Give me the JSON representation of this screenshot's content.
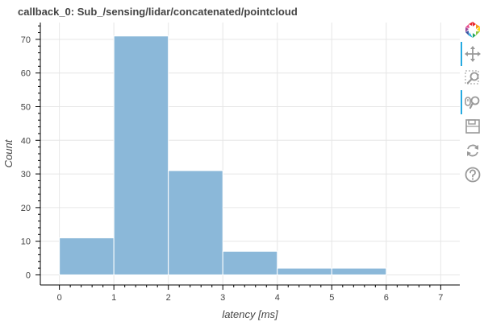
{
  "chart_data": {
    "type": "bar",
    "title": "callback_0: Sub_/sensing/lidar/concatenated/pointcloud",
    "xlabel": "latency [ms]",
    "ylabel": "Count",
    "bins": [
      {
        "left": 0,
        "right": 1,
        "value": 11
      },
      {
        "left": 1,
        "right": 2,
        "value": 71
      },
      {
        "left": 2,
        "right": 3,
        "value": 31
      },
      {
        "left": 3,
        "right": 4,
        "value": 7
      },
      {
        "left": 4,
        "right": 5,
        "value": 2
      },
      {
        "left": 5,
        "right": 6,
        "value": 2
      }
    ],
    "xlim": [
      -0.35,
      7.35
    ],
    "ylim": [
      -3,
      75
    ],
    "x_ticks": [
      "0",
      "1",
      "2",
      "3",
      "4",
      "5",
      "6",
      "7"
    ],
    "y_ticks": [
      "0",
      "10",
      "20",
      "30",
      "40",
      "50",
      "60",
      "70"
    ],
    "grid": true,
    "bar_color": "#8bb8d9"
  },
  "toolbar": {
    "tools": [
      {
        "icon": "bokeh-logo-icon",
        "active": false
      },
      {
        "icon": "pan-icon",
        "active": true
      },
      {
        "icon": "box-zoom-icon",
        "active": false
      },
      {
        "icon": "wheel-zoom-icon",
        "active": true
      },
      {
        "icon": "save-icon",
        "active": false
      },
      {
        "icon": "reset-icon",
        "active": false
      },
      {
        "icon": "help-icon",
        "active": false
      }
    ]
  }
}
